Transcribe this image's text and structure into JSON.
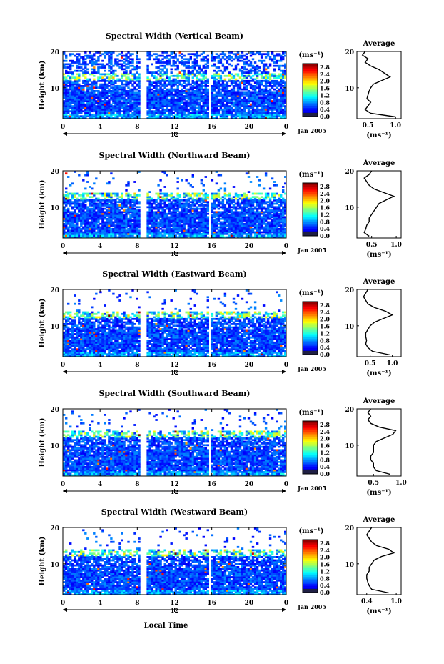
{
  "figure": {
    "date_label": "Jan 2005",
    "x_axis_label": "Local Time",
    "colorbar_unit": "(ms⁻¹)",
    "avg_title": "Average",
    "avg_unit": "(ms⁻¹)"
  },
  "chart_data": [
    {
      "type": "heatmap",
      "title": "Spectral Width (Vertical Beam)",
      "ylabel": "Height (km)",
      "xlabel": "Local Time",
      "xlim": [
        0,
        24
      ],
      "ylim": [
        1.5,
        20
      ],
      "x_ticks": [
        "0",
        "4",
        "8",
        "12",
        "16",
        "20",
        "0"
      ],
      "y_ticks": [
        "10",
        "20"
      ],
      "center_tick": "12",
      "gaps_hours": [
        [
          8.4,
          8.9
        ],
        [
          15.8,
          16.0
        ]
      ],
      "colorbar": {
        "unit": "(ms⁻¹)",
        "ticks": [
          "0.0",
          "0.4",
          "0.8",
          "1.2",
          "1.6",
          "2.0",
          "2.4",
          "2.8"
        ],
        "range": [
          0,
          3.0
        ]
      },
      "average": {
        "title": "Average",
        "xlabel": "(ms⁻¹)",
        "xlim": [
          0.3,
          1.1
        ],
        "x_ticks": [
          "0.5",
          "1.0"
        ],
        "height": [
          2,
          3,
          4,
          5,
          6,
          7,
          8,
          9,
          10,
          11,
          12,
          13,
          14,
          15,
          16,
          17,
          18,
          19,
          20
        ],
        "value": [
          1.0,
          0.55,
          0.45,
          0.5,
          0.55,
          0.48,
          0.5,
          0.52,
          0.55,
          0.6,
          0.75,
          0.9,
          0.8,
          0.7,
          0.55,
          0.45,
          0.5,
          0.4,
          0.45
        ]
      }
    },
    {
      "type": "heatmap",
      "title": "Spectral Width (Northward Beam)",
      "ylabel": "Height (km)",
      "xlabel": "Local Time",
      "xlim": [
        0,
        24
      ],
      "ylim": [
        1.5,
        20
      ],
      "x_ticks": [
        "0",
        "4",
        "8",
        "12",
        "16",
        "20",
        "0"
      ],
      "y_ticks": [
        "10",
        "20"
      ],
      "center_tick": "12",
      "gaps_hours": [
        [
          8.4,
          8.9
        ],
        [
          15.8,
          16.0
        ]
      ],
      "colorbar": {
        "unit": "(ms⁻¹)",
        "ticks": [
          "0.0",
          "0.4",
          "0.8",
          "1.2",
          "1.6",
          "2.0",
          "2.4",
          "2.8"
        ],
        "range": [
          0,
          3.0
        ]
      },
      "average": {
        "title": "Average",
        "xlabel": "(ms⁻¹)",
        "xlim": [
          0.2,
          1.1
        ],
        "x_ticks": [
          "0.5",
          "1.0"
        ],
        "height": [
          2,
          3,
          4,
          5,
          6,
          7,
          8,
          9,
          10,
          11,
          12,
          13,
          14,
          15,
          16,
          17,
          18,
          19,
          20
        ],
        "value": [
          0.45,
          0.35,
          0.38,
          0.4,
          0.45,
          0.45,
          0.5,
          0.55,
          0.6,
          0.65,
          0.8,
          0.95,
          0.75,
          0.55,
          0.45,
          0.4,
          0.35,
          0.45,
          0.5
        ]
      }
    },
    {
      "type": "heatmap",
      "title": "Spectral Width (Eastward Beam)",
      "ylabel": "Height (km)",
      "xlabel": "Local Time",
      "xlim": [
        0,
        24
      ],
      "ylim": [
        1.5,
        20
      ],
      "x_ticks": [
        "0",
        "4",
        "8",
        "12",
        "16",
        "20",
        "0"
      ],
      "y_ticks": [
        "10",
        "20"
      ],
      "center_tick": "12",
      "gaps_hours": [
        [
          8.4,
          8.9
        ],
        [
          15.8,
          16.0
        ]
      ],
      "colorbar": {
        "unit": "(ms⁻¹)",
        "ticks": [
          "0.0",
          "0.4",
          "0.8",
          "1.2",
          "1.6",
          "2.0",
          "2.4",
          "2.8"
        ],
        "range": [
          0,
          3.0
        ]
      },
      "average": {
        "title": "Average",
        "xlabel": "(ms⁻¹)",
        "xlim": [
          0.2,
          1.2
        ],
        "x_ticks": [
          "0.5",
          "1.0"
        ],
        "height": [
          2,
          3,
          4,
          5,
          6,
          7,
          8,
          9,
          10,
          11,
          12,
          13,
          14,
          15,
          16,
          17,
          18,
          19,
          20
        ],
        "value": [
          0.95,
          0.55,
          0.45,
          0.4,
          0.42,
          0.4,
          0.4,
          0.45,
          0.5,
          0.6,
          0.8,
          1.0,
          0.85,
          0.6,
          0.45,
          0.4,
          0.35,
          0.4,
          0.45
        ]
      }
    },
    {
      "type": "heatmap",
      "title": "Spectral Width (Southward Beam)",
      "ylabel": "Height (km)",
      "xlabel": "Local Time",
      "xlim": [
        0,
        24
      ],
      "ylim": [
        1.5,
        20
      ],
      "x_ticks": [
        "0",
        "4",
        "8",
        "12",
        "16",
        "20",
        "0"
      ],
      "y_ticks": [
        "10",
        "20"
      ],
      "center_tick": "12",
      "gaps_hours": [
        [
          8.4,
          8.9
        ],
        [
          15.8,
          16.0
        ]
      ],
      "colorbar": {
        "unit": "(ms⁻¹)",
        "ticks": [
          "0.0",
          "0.4",
          "0.8",
          "1.2",
          "1.6",
          "2.0",
          "2.4",
          "2.8"
        ],
        "range": [
          0,
          3.0
        ]
      },
      "average": {
        "title": "Average",
        "xlabel": "(ms⁻¹)",
        "xlim": [
          0.2,
          1.0
        ],
        "x_ticks": [
          "0.5",
          "1.0"
        ],
        "height": [
          2,
          3,
          4,
          5,
          6,
          7,
          8,
          9,
          10,
          11,
          12,
          13,
          14,
          15,
          16,
          17,
          18,
          19,
          20
        ],
        "value": [
          0.8,
          0.55,
          0.5,
          0.5,
          0.45,
          0.45,
          0.5,
          0.5,
          0.5,
          0.55,
          0.7,
          0.85,
          0.9,
          0.6,
          0.45,
          0.4,
          0.45,
          0.4,
          0.45
        ]
      }
    },
    {
      "type": "heatmap",
      "title": "Spectral Width (Westward Beam)",
      "ylabel": "Height (km)",
      "xlabel": "Local Time",
      "xlim": [
        0,
        24
      ],
      "ylim": [
        1.5,
        20
      ],
      "x_ticks": [
        "0",
        "4",
        "8",
        "12",
        "16",
        "20",
        "0"
      ],
      "y_ticks": [
        "10",
        "20"
      ],
      "center_tick": "12",
      "gaps_hours": [
        [
          8.4,
          8.9
        ],
        [
          15.8,
          16.0
        ]
      ],
      "colorbar": {
        "unit": "(ms⁻¹)",
        "ticks": [
          "0.0",
          "0.4",
          "0.8",
          "1.2",
          "1.6",
          "2.0",
          "2.4",
          "2.8"
        ],
        "range": [
          0,
          3.0
        ]
      },
      "average": {
        "title": "Average",
        "xlabel": "(ms⁻¹)",
        "xlim": [
          0.2,
          1.1
        ],
        "x_ticks": [
          "0.4",
          "1.0"
        ],
        "height": [
          2,
          3,
          4,
          5,
          6,
          7,
          8,
          9,
          10,
          11,
          12,
          13,
          14,
          15,
          16,
          17,
          18,
          19,
          20
        ],
        "value": [
          0.85,
          0.5,
          0.45,
          0.42,
          0.4,
          0.4,
          0.45,
          0.45,
          0.5,
          0.55,
          0.7,
          0.95,
          0.85,
          0.6,
          0.5,
          0.45,
          0.4,
          0.45,
          0.5
        ]
      }
    }
  ]
}
